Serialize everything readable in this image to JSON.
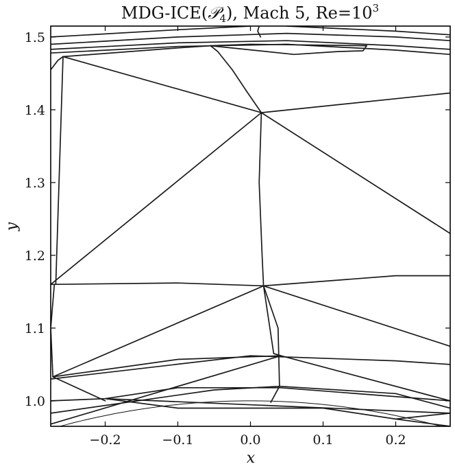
{
  "figure": {
    "title_prefix": "MDG-ICE(",
    "title_symbol": "𝒫",
    "title_sub": "4",
    "title_suffix": "), Mach 5, Re=10",
    "title_sup": "3",
    "xlabel": "x",
    "ylabel": "y",
    "xlim": [
      -0.275,
      0.275
    ],
    "ylim": [
      0.965,
      1.515
    ],
    "x_ticks": [
      {
        "value": -0.2,
        "label": "−0.2"
      },
      {
        "value": -0.1,
        "label": "−0.1"
      },
      {
        "value": 0.0,
        "label": "0.0"
      },
      {
        "value": 0.1,
        "label": "0.1"
      },
      {
        "value": 0.2,
        "label": "0.2"
      }
    ],
    "y_ticks": [
      {
        "value": 1.0,
        "label": "1.0"
      },
      {
        "value": 1.1,
        "label": "1.1"
      },
      {
        "value": 1.2,
        "label": "1.2"
      },
      {
        "value": 1.3,
        "label": "1.3"
      },
      {
        "value": 1.4,
        "label": "1.4"
      },
      {
        "value": 1.5,
        "label": "1.5"
      }
    ]
  },
  "mesh_edges": [
    [
      [
        -0.275,
        1.483
      ],
      [
        -0.1,
        1.492
      ],
      [
        0.05,
        1.495
      ],
      [
        0.2,
        1.488
      ],
      [
        0.275,
        1.483
      ]
    ],
    [
      [
        -0.275,
        1.478
      ],
      [
        -0.1,
        1.487
      ],
      [
        0.05,
        1.49
      ],
      [
        0.2,
        1.482
      ],
      [
        0.275,
        1.476
      ]
    ],
    [
      [
        -0.275,
        1.49
      ],
      [
        -0.1,
        1.5
      ],
      [
        0.05,
        1.505
      ],
      [
        0.2,
        1.5
      ],
      [
        0.275,
        1.495
      ]
    ],
    [
      [
        -0.275,
        1.5
      ],
      [
        -0.1,
        1.51
      ],
      [
        0.0,
        1.515
      ]
    ],
    [
      [
        0.05,
        1.515
      ],
      [
        0.2,
        1.508
      ],
      [
        0.275,
        1.503
      ]
    ],
    [
      [
        0.012,
        1.515
      ],
      [
        0.01,
        1.508
      ],
      [
        0.014,
        1.5
      ]
    ],
    [
      [
        -0.055,
        1.488
      ],
      [
        0.0,
        1.49
      ],
      [
        0.16,
        1.488
      ]
    ],
    [
      [
        -0.055,
        1.488
      ],
      [
        -0.045,
        1.48
      ],
      [
        -0.025,
        1.455
      ],
      [
        -0.005,
        1.425
      ],
      [
        0.015,
        1.396
      ]
    ],
    [
      [
        0.16,
        1.488
      ],
      [
        0.155,
        1.481
      ],
      [
        0.12,
        1.48
      ],
      [
        0.06,
        1.476
      ],
      [
        -0.055,
        1.488
      ]
    ],
    [
      [
        -0.275,
        1.455
      ],
      [
        -0.265,
        1.468
      ],
      [
        -0.258,
        1.473
      ]
    ],
    [
      [
        -0.258,
        1.473
      ],
      [
        -0.1,
        1.485
      ],
      [
        -0.055,
        1.488
      ]
    ],
    [
      [
        -0.258,
        1.473
      ],
      [
        0.015,
        1.396
      ]
    ],
    [
      [
        0.015,
        1.396
      ],
      [
        0.275,
        1.423
      ]
    ],
    [
      [
        0.015,
        1.396
      ],
      [
        0.275,
        1.23
      ]
    ],
    [
      [
        0.015,
        1.396
      ],
      [
        -0.275,
        1.16
      ]
    ],
    [
      [
        0.015,
        1.396
      ],
      [
        0.012,
        1.3
      ],
      [
        0.016,
        1.2
      ],
      [
        0.018,
        1.158
      ]
    ],
    [
      [
        -0.258,
        1.473
      ],
      [
        -0.262,
        1.35
      ],
      [
        -0.268,
        1.16
      ]
    ],
    [
      [
        -0.275,
        1.16
      ],
      [
        -0.1,
        1.162
      ],
      [
        0.018,
        1.158
      ]
    ],
    [
      [
        0.018,
        1.158
      ],
      [
        0.2,
        1.172
      ],
      [
        0.275,
        1.172
      ]
    ],
    [
      [
        0.018,
        1.158
      ],
      [
        0.275,
        1.075
      ]
    ],
    [
      [
        0.018,
        1.158
      ],
      [
        0.032,
        1.065
      ],
      [
        0.042,
        1.062
      ]
    ],
    [
      [
        -0.27,
        1.16
      ],
      [
        -0.275,
        1.1
      ],
      [
        -0.272,
        1.033
      ]
    ],
    [
      [
        -0.272,
        1.033
      ],
      [
        0.018,
        1.158
      ]
    ],
    [
      [
        -0.272,
        1.033
      ],
      [
        -0.1,
        1.057
      ],
      [
        0.042,
        1.062
      ]
    ],
    [
      [
        -0.272,
        1.033
      ],
      [
        -0.2,
        1.0
      ]
    ],
    [
      [
        -0.275,
        1.03
      ],
      [
        0.0,
        1.062
      ],
      [
        0.2,
        1.055
      ],
      [
        0.275,
        1.05
      ]
    ],
    [
      [
        0.042,
        1.062
      ],
      [
        0.275,
        1.0
      ]
    ],
    [
      [
        0.042,
        1.062
      ],
      [
        -0.275,
        0.968
      ]
    ],
    [
      [
        0.018,
        1.158
      ],
      [
        0.038,
        1.1
      ],
      [
        0.04,
        1.02
      ],
      [
        0.028,
        0.998
      ]
    ],
    [
      [
        -0.275,
        0.983
      ],
      [
        -0.05,
        1.015
      ],
      [
        0.04,
        1.02
      ],
      [
        0.2,
        1.01
      ],
      [
        0.275,
        0.99
      ]
    ],
    [
      [
        -0.275,
        1.0
      ],
      [
        -0.2,
        1.003
      ],
      [
        -0.1,
        1.018
      ],
      [
        0.042,
        1.018
      ],
      [
        0.275,
        1.0
      ]
    ],
    [
      [
        -0.2,
        1.003
      ],
      [
        0.275,
        0.983
      ]
    ],
    [
      [
        -0.2,
        1.003
      ],
      [
        -0.1,
        0.99
      ],
      [
        0.1,
        0.99
      ],
      [
        0.2,
        0.975
      ],
      [
        0.275,
        0.983
      ]
    ],
    [
      [
        0.2,
        0.975
      ],
      [
        0.275,
        0.965
      ]
    ]
  ],
  "body_curve": {
    "center": [
      0.0,
      0.0
    ],
    "radius": 1.0
  }
}
